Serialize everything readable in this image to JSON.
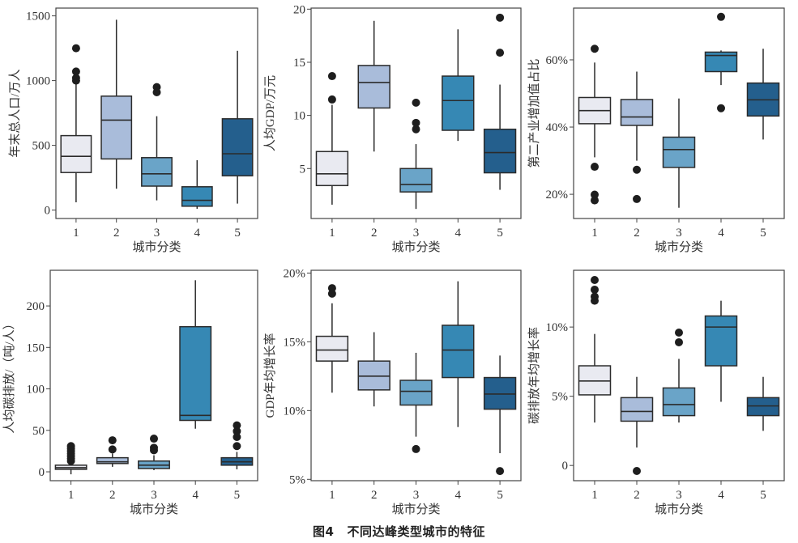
{
  "caption": {
    "figure_label": "图4",
    "title": "不同达峰类型城市的特征"
  },
  "palette": [
    "#e9eaf1",
    "#a9bcda",
    "#6aa4c8",
    "#3688b4",
    "#245f8d"
  ],
  "chart_data": [
    {
      "type": "box",
      "id": "population",
      "title": "",
      "xlabel": "城市分类",
      "ylabel": "年末总人口/万人",
      "categories": [
        "1",
        "2",
        "3",
        "4",
        "5"
      ],
      "ylim": [
        -65,
        1560
      ],
      "yticks": [
        0,
        500,
        1000,
        1500
      ],
      "ytick_labels": [
        "0",
        "500",
        "1000",
        "1500"
      ],
      "boxes": [
        {
          "q1": 290,
          "median": 415,
          "q3": 575,
          "whislo": 60,
          "whishi": 975,
          "fliers": [
            1000,
            1020,
            1070,
            1250
          ]
        },
        {
          "q1": 395,
          "median": 695,
          "q3": 880,
          "whislo": 165,
          "whishi": 1470,
          "fliers": []
        },
        {
          "q1": 185,
          "median": 280,
          "q3": 405,
          "whislo": 75,
          "whishi": 725,
          "fliers": [
            910,
            950
          ]
        },
        {
          "q1": 30,
          "median": 75,
          "q3": 180,
          "whislo": 10,
          "whishi": 385,
          "fliers": []
        },
        {
          "q1": 265,
          "median": 435,
          "q3": 705,
          "whislo": 50,
          "whishi": 1230,
          "fliers": []
        }
      ]
    },
    {
      "type": "box",
      "id": "gdp-per-capita",
      "title": "",
      "xlabel": "城市分类",
      "ylabel": "人均GDP/万元",
      "categories": [
        "1",
        "2",
        "3",
        "4",
        "5"
      ],
      "ylim": [
        0.3,
        20.1
      ],
      "yticks": [
        5,
        10,
        15,
        20
      ],
      "ytick_labels": [
        "5",
        "10",
        "15",
        "20"
      ],
      "boxes": [
        {
          "q1": 3.4,
          "median": 4.5,
          "q3": 6.6,
          "whislo": 1.6,
          "whishi": 11.0,
          "fliers": [
            11.5,
            13.7
          ]
        },
        {
          "q1": 10.7,
          "median": 13.1,
          "q3": 14.7,
          "whislo": 6.6,
          "whishi": 18.9,
          "fliers": []
        },
        {
          "q1": 2.8,
          "median": 3.5,
          "q3": 5.0,
          "whislo": 1.2,
          "whishi": 7.3,
          "fliers": [
            8.7,
            9.3,
            11.2
          ]
        },
        {
          "q1": 8.6,
          "median": 11.4,
          "q3": 13.7,
          "whislo": 7.6,
          "whishi": 18.1,
          "fliers": []
        },
        {
          "q1": 4.6,
          "median": 6.5,
          "q3": 8.7,
          "whislo": 3.0,
          "whishi": 12.9,
          "fliers": [
            15.9,
            19.2
          ]
        }
      ]
    },
    {
      "type": "box",
      "id": "secondary-industry-share",
      "title": "",
      "xlabel": "城市分类",
      "ylabel": "第二产业增加值占比",
      "categories": [
        "1",
        "2",
        "3",
        "4",
        "5"
      ],
      "ylim": [
        12.8,
        75.4
      ],
      "yticks": [
        20,
        40,
        60
      ],
      "ytick_labels": [
        "20%",
        "40%",
        "60%"
      ],
      "boxes": [
        {
          "q1": 41.0,
          "median": 44.9,
          "q3": 48.8,
          "whislo": 31.0,
          "whishi": 59.2,
          "fliers": [
            18.2,
            19.9,
            28.2,
            63.3
          ]
        },
        {
          "q1": 40.5,
          "median": 43.0,
          "q3": 48.2,
          "whislo": 30.0,
          "whishi": 56.5,
          "fliers": [
            18.6,
            27.3
          ]
        },
        {
          "q1": 28.0,
          "median": 33.3,
          "q3": 37.0,
          "whislo": 16.0,
          "whishi": 48.5,
          "fliers": []
        },
        {
          "q1": 56.5,
          "median": 61.3,
          "q3": 62.3,
          "whislo": 52.5,
          "whishi": 62.8,
          "fliers": [
            45.6,
            72.8
          ]
        },
        {
          "q1": 43.3,
          "median": 48.1,
          "q3": 53.1,
          "whislo": 36.3,
          "whishi": 63.3,
          "fliers": []
        }
      ]
    },
    {
      "type": "box",
      "id": "carbon-per-capita",
      "title": "",
      "xlabel": "城市分类",
      "ylabel": "人均碳排放/（吨/人）",
      "categories": [
        "1",
        "2",
        "3",
        "4",
        "5"
      ],
      "ylim": [
        -10.7,
        243
      ],
      "yticks": [
        0,
        50,
        100,
        150,
        200
      ],
      "ytick_labels": [
        "0",
        "50",
        "100",
        "150",
        "200"
      ],
      "boxes": [
        {
          "q1": 3,
          "median": 5,
          "q3": 8,
          "whislo": -3,
          "whishi": 11,
          "fliers": [
            13,
            16,
            19,
            22,
            25,
            28,
            31
          ]
        },
        {
          "q1": 10,
          "median": 12,
          "q3": 17,
          "whislo": 6,
          "whishi": 22,
          "fliers": [
            27,
            38
          ]
        },
        {
          "q1": 4,
          "median": 8,
          "q3": 13,
          "whislo": 2,
          "whishi": 20,
          "fliers": [
            26,
            29,
            40
          ]
        },
        {
          "q1": 62,
          "median": 68,
          "q3": 175,
          "whislo": 52,
          "whishi": 231,
          "fliers": []
        },
        {
          "q1": 8,
          "median": 12,
          "q3": 17,
          "whislo": 3,
          "whishi": 24,
          "fliers": [
            31,
            42,
            49,
            56
          ]
        }
      ]
    },
    {
      "type": "box",
      "id": "gdp-growth-rate",
      "title": "",
      "xlabel": "城市分类",
      "ylabel": "GDP年均增长率",
      "categories": [
        "1",
        "2",
        "3",
        "4",
        "5"
      ],
      "ylim": [
        4.9,
        20.2
      ],
      "yticks": [
        5,
        10,
        15,
        20
      ],
      "ytick_labels": [
        "5%",
        "10%",
        "15%",
        "20%"
      ],
      "boxes": [
        {
          "q1": 13.6,
          "median": 14.4,
          "q3": 15.4,
          "whislo": 11.3,
          "whishi": 17.8,
          "fliers": [
            18.5,
            18.9
          ]
        },
        {
          "q1": 11.5,
          "median": 12.5,
          "q3": 13.6,
          "whislo": 10.3,
          "whishi": 15.7,
          "fliers": []
        },
        {
          "q1": 10.4,
          "median": 11.4,
          "q3": 12.2,
          "whislo": 8.1,
          "whishi": 14.2,
          "fliers": [
            7.2
          ]
        },
        {
          "q1": 12.4,
          "median": 14.4,
          "q3": 16.2,
          "whislo": 8.8,
          "whishi": 19.4,
          "fliers": []
        },
        {
          "q1": 10.1,
          "median": 11.2,
          "q3": 12.4,
          "whislo": 6.9,
          "whishi": 14.0,
          "fliers": [
            5.6
          ]
        }
      ]
    },
    {
      "type": "box",
      "id": "carbon-growth-rate",
      "title": "",
      "xlabel": "城市分类",
      "ylabel": "碳排放年均增长率",
      "categories": [
        "1",
        "2",
        "3",
        "4",
        "5"
      ],
      "ylim": [
        -1.1,
        14.1
      ],
      "yticks": [
        0,
        5,
        10
      ],
      "ytick_labels": [
        "0",
        "5%",
        "10%"
      ],
      "boxes": [
        {
          "q1": 5.1,
          "median": 6.1,
          "q3": 7.2,
          "whislo": 3.1,
          "whishi": 9.5,
          "fliers": [
            11.9,
            12.2,
            12.7,
            13.4
          ]
        },
        {
          "q1": 3.2,
          "median": 3.9,
          "q3": 4.9,
          "whislo": 1.3,
          "whishi": 6.4,
          "fliers": [
            -0.4
          ]
        },
        {
          "q1": 3.6,
          "median": 4.4,
          "q3": 5.6,
          "whislo": 3.1,
          "whishi": 7.7,
          "fliers": [
            8.9,
            9.6
          ]
        },
        {
          "q1": 7.2,
          "median": 10.0,
          "q3": 10.8,
          "whislo": 4.6,
          "whishi": 11.9,
          "fliers": []
        },
        {
          "q1": 3.6,
          "median": 4.3,
          "q3": 4.9,
          "whislo": 2.5,
          "whishi": 6.4,
          "fliers": []
        }
      ]
    }
  ]
}
